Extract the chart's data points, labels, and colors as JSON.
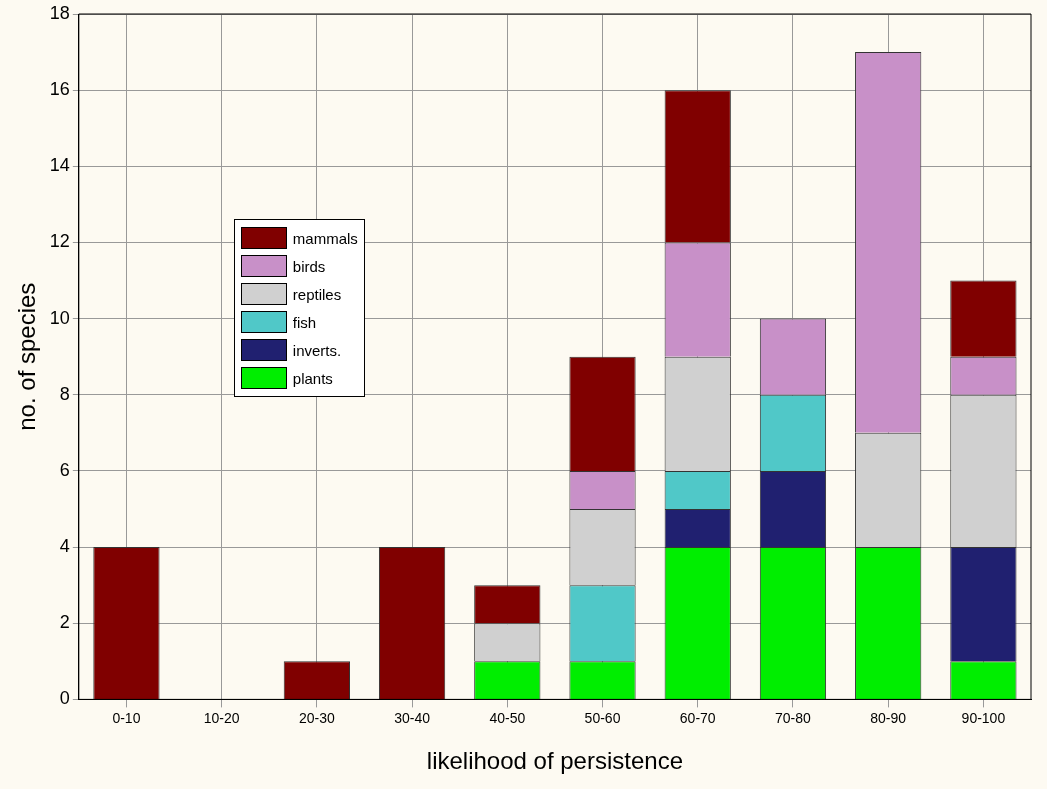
{
  "chart_data": {
    "type": "bar",
    "stacked": true,
    "xlabel": "likelihood of persistence",
    "ylabel": "no. of species",
    "categories": [
      "0-10",
      "10-20",
      "20-30",
      "30-40",
      "40-50",
      "50-60",
      "60-70",
      "70-80",
      "80-90",
      "90-100"
    ],
    "series": [
      {
        "name": "plants",
        "color": "#00ee00",
        "values": [
          0,
          0,
          0,
          0,
          1,
          1,
          4,
          4,
          4,
          1
        ]
      },
      {
        "name": "inverts.",
        "color": "#202070",
        "values": [
          0,
          0,
          0,
          0,
          0,
          0,
          1,
          2,
          0,
          3
        ]
      },
      {
        "name": "fish",
        "color": "#50c8c8",
        "values": [
          0,
          0,
          0,
          0,
          0,
          2,
          1,
          2,
          0,
          0
        ]
      },
      {
        "name": "reptiles",
        "color": "#d0d0d0",
        "values": [
          0,
          0,
          0,
          0,
          1,
          2,
          3,
          0,
          3,
          4
        ]
      },
      {
        "name": "birds",
        "color": "#c890c8",
        "values": [
          0,
          0,
          0,
          0,
          0,
          1,
          3,
          2,
          10,
          1
        ]
      },
      {
        "name": "mammals",
        "color": "#800000",
        "values": [
          4,
          0,
          1,
          4,
          1,
          3,
          4,
          0,
          0,
          2
        ]
      }
    ],
    "ylim": [
      0,
      18
    ],
    "yticks": [
      0,
      2,
      4,
      6,
      8,
      10,
      12,
      14,
      16,
      18
    ],
    "grid": true,
    "legend": "top left"
  }
}
